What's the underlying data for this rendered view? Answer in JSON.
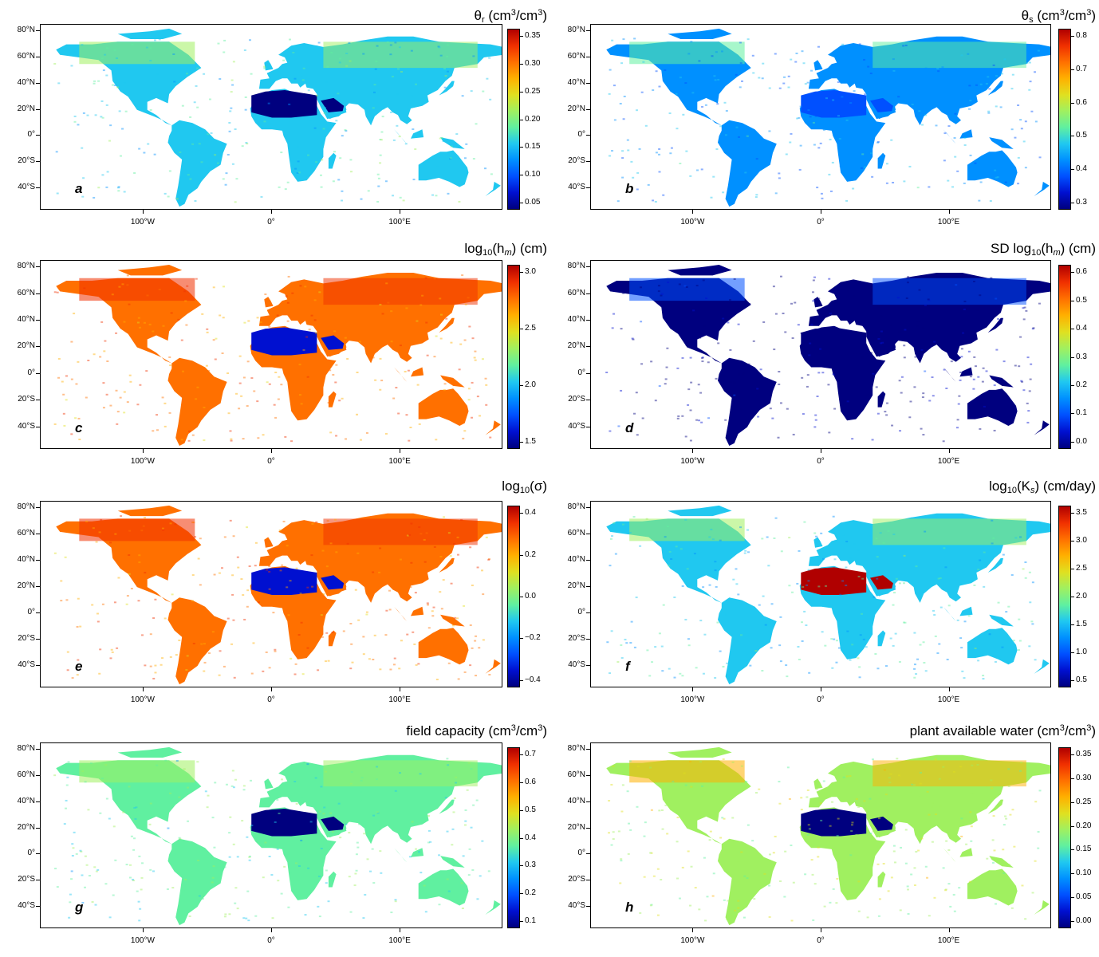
{
  "axes": {
    "lat_labels": [
      "80°N",
      "60°N",
      "40°N",
      "20°N",
      "0°",
      "20°S",
      "40°S"
    ],
    "lon_labels": [
      "100°W",
      "0°",
      "100°E"
    ]
  },
  "colormap": [
    "#00007f",
    "#0010d0",
    "#0050ff",
    "#0090ff",
    "#20c8f0",
    "#60f0a0",
    "#a0f060",
    "#e0e020",
    "#ffb000",
    "#ff7000",
    "#f03000",
    "#b00000"
  ],
  "panels": [
    {
      "letter": "a",
      "title_main": "θ",
      "title_sub": "r",
      "title_rest": " (cm",
      "title_sup": "3",
      "title_end": "/cm",
      "title_sup2": "3",
      "title_close": ")",
      "colorbar_ticks": [
        "0.35",
        "0.30",
        "0.25",
        "0.20",
        "0.15",
        "0.10",
        "0.05"
      ],
      "land_level": 0.4,
      "desert_level": 0.05
    },
    {
      "letter": "b",
      "title_main": "θ",
      "title_sub": "s",
      "title_rest": " (cm",
      "title_sup": "3",
      "title_end": "/cm",
      "title_sup2": "3",
      "title_close": ")",
      "colorbar_ticks": [
        "0.8",
        "0.7",
        "0.6",
        "0.5",
        "0.4",
        "0.3"
      ],
      "land_level": 0.3,
      "desert_level": 0.2
    },
    {
      "letter": "c",
      "title_main": "log",
      "title_sub": "10",
      "title_rest": "(h",
      "title_sup": "",
      "title_end": "",
      "title_sup2": "",
      "title_close": ") (cm)",
      "title_italic_sub": "m",
      "colorbar_ticks": [
        "3.0",
        "2.5",
        "2.0",
        "1.5"
      ],
      "land_level": 0.78,
      "desert_level": 0.12
    },
    {
      "letter": "d",
      "title_main": "SD log",
      "title_sub": "10",
      "title_rest": "(h",
      "title_sup": "",
      "title_end": "",
      "title_sup2": "",
      "title_close": ") (cm)",
      "title_italic_sub": "m",
      "colorbar_ticks": [
        "0.6",
        "0.5",
        "0.4",
        "0.3",
        "0.2",
        "0.1",
        "0.0"
      ],
      "land_level": 0.05,
      "desert_level": 0.05
    },
    {
      "letter": "e",
      "title_main": "log",
      "title_sub": "10",
      "title_rest": "(σ)",
      "title_sup": "",
      "title_end": "",
      "title_sup2": "",
      "title_close": "",
      "colorbar_ticks": [
        "0.4",
        "0.2",
        "0.0",
        "−0.2",
        "−0.4"
      ],
      "land_level": 0.78,
      "desert_level": 0.12
    },
    {
      "letter": "f",
      "title_main": "log",
      "title_sub": "10",
      "title_rest": "(K",
      "title_sup": "",
      "title_end": "",
      "title_sup2": "",
      "title_close": ") (cm/day)",
      "title_italic_sub": "s",
      "colorbar_ticks": [
        "3.5",
        "3.0",
        "2.5",
        "2.0",
        "1.5",
        "1.0",
        "0.5"
      ],
      "land_level": 0.38,
      "desert_level": 0.92
    },
    {
      "letter": "g",
      "title_main": "field capacity (cm",
      "title_sub": "",
      "title_rest": "",
      "title_sup": "3",
      "title_end": "/cm",
      "title_sup2": "3",
      "title_close": ")",
      "colorbar_ticks": [
        "0.7",
        "0.6",
        "0.5",
        "0.4",
        "0.3",
        "0.2",
        "0.1"
      ],
      "land_level": 0.45,
      "desert_level": 0.05
    },
    {
      "letter": "h",
      "title_main": "plant available water (cm",
      "title_sub": "",
      "title_rest": "",
      "title_sup": "3",
      "title_end": "/cm",
      "title_sup2": "3",
      "title_close": ")",
      "colorbar_ticks": [
        "0.35",
        "0.30",
        "0.25",
        "0.20",
        "0.15",
        "0.10",
        "0.05",
        "0.00"
      ],
      "land_level": 0.55,
      "desert_level": 0.05
    }
  ]
}
